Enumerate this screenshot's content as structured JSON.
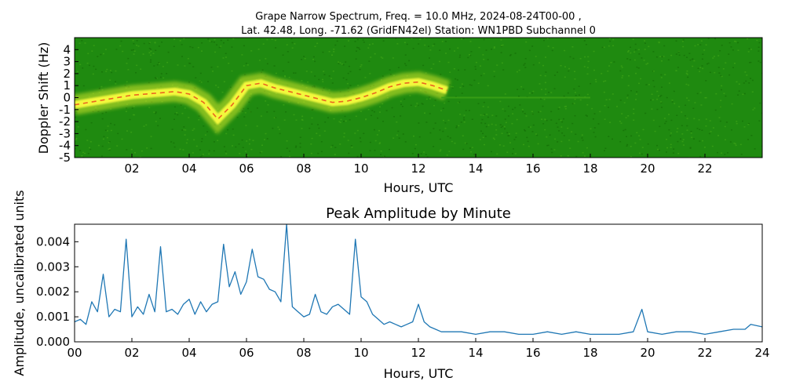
{
  "figure": {
    "title_line1": "Grape Narrow Spectrum, Freq. = 10.0 MHz, 2024-08-24T00-00 ,",
    "title_line2": "Lat.  42.48, Long. -71.62 (GridFN42el) Station: WN1PBD Subchannel 0"
  },
  "colors": {
    "spectrum_background": "#1f8a10",
    "spectrum_low": "#3aa016",
    "spectrum_mid": "#d8e82a",
    "spectrum_high": "#ffff40",
    "spectrum_peak": "#e8401a",
    "line": "#1f77b4"
  },
  "chart_data": [
    {
      "type": "heatmap",
      "title": "",
      "xlabel": "Hours, UTC",
      "ylabel": "Doppler Shift (Hz)",
      "xlim": [
        0,
        24
      ],
      "ylim": [
        -5,
        5
      ],
      "x_ticks": [
        "02",
        "04",
        "06",
        "08",
        "10",
        "12",
        "14",
        "16",
        "18",
        "20",
        "22"
      ],
      "y_ticks": [
        "4",
        "3",
        "2",
        "1",
        "0",
        "-1",
        "-2",
        "-3",
        "-4",
        "-5"
      ],
      "grid": false,
      "trace": {
        "x": [
          0.0,
          0.5,
          1.0,
          1.5,
          2.0,
          2.5,
          3.0,
          3.5,
          4.0,
          4.5,
          5.0,
          5.5,
          6.0,
          6.5,
          7.0,
          7.5,
          8.0,
          8.5,
          9.0,
          9.5,
          10.0,
          10.5,
          11.0,
          11.5,
          12.0,
          12.5,
          13.0
        ],
        "y": [
          -0.6,
          -0.4,
          -0.2,
          0.0,
          0.2,
          0.3,
          0.4,
          0.5,
          0.3,
          -0.4,
          -1.8,
          -0.6,
          1.0,
          1.2,
          0.8,
          0.5,
          0.2,
          -0.1,
          -0.4,
          -0.3,
          0.0,
          0.4,
          0.9,
          1.2,
          1.3,
          1.0,
          0.6
        ]
      },
      "quiet_line_y": 0.0
    },
    {
      "type": "line",
      "title": "Peak Amplitude by Minute",
      "xlabel": "Hours, UTC",
      "ylabel": "Amplitude, uncalibrated units",
      "xlim": [
        0,
        24
      ],
      "ylim": [
        0,
        0.0047
      ],
      "x_ticks": [
        "00",
        "02",
        "04",
        "06",
        "08",
        "10",
        "12",
        "14",
        "16",
        "18",
        "20",
        "22",
        "24"
      ],
      "y_ticks": [
        "0.000",
        "0.001",
        "0.002",
        "0.003",
        "0.004"
      ],
      "grid": false,
      "series": [
        {
          "x": [
            0.0,
            0.2,
            0.4,
            0.6,
            0.8,
            1.0,
            1.2,
            1.4,
            1.6,
            1.8,
            2.0,
            2.2,
            2.4,
            2.6,
            2.8,
            3.0,
            3.2,
            3.4,
            3.6,
            3.8,
            4.0,
            4.2,
            4.4,
            4.6,
            4.8,
            5.0,
            5.2,
            5.4,
            5.6,
            5.8,
            6.0,
            6.2,
            6.4,
            6.6,
            6.8,
            7.0,
            7.2,
            7.4,
            7.6,
            7.8,
            8.0,
            8.2,
            8.4,
            8.6,
            8.8,
            9.0,
            9.2,
            9.4,
            9.6,
            9.8,
            10.0,
            10.2,
            10.4,
            10.6,
            10.8,
            11.0,
            11.2,
            11.4,
            11.6,
            11.8,
            12.0,
            12.2,
            12.4,
            12.6,
            12.8,
            13.0,
            13.5,
            14.0,
            14.5,
            15.0,
            15.5,
            16.0,
            16.5,
            17.0,
            17.5,
            18.0,
            18.5,
            19.0,
            19.5,
            19.8,
            20.0,
            20.5,
            21.0,
            21.5,
            22.0,
            22.5,
            23.0,
            23.4,
            23.6,
            24.0
          ],
          "values": [
            0.0008,
            0.0009,
            0.0007,
            0.0016,
            0.0012,
            0.0027,
            0.001,
            0.0013,
            0.0012,
            0.0041,
            0.001,
            0.0014,
            0.0011,
            0.0019,
            0.0012,
            0.0038,
            0.0012,
            0.0013,
            0.0011,
            0.0015,
            0.0017,
            0.0011,
            0.0016,
            0.0012,
            0.0015,
            0.0016,
            0.0039,
            0.0022,
            0.0028,
            0.0019,
            0.0024,
            0.0037,
            0.0026,
            0.0025,
            0.0021,
            0.002,
            0.0016,
            0.0047,
            0.0014,
            0.0012,
            0.001,
            0.0011,
            0.0019,
            0.0012,
            0.0011,
            0.0014,
            0.0015,
            0.0013,
            0.0011,
            0.0041,
            0.0018,
            0.0016,
            0.0011,
            0.0009,
            0.0007,
            0.0008,
            0.0007,
            0.0006,
            0.0007,
            0.0008,
            0.0015,
            0.0008,
            0.0006,
            0.0005,
            0.0004,
            0.0004,
            0.0004,
            0.0003,
            0.0004,
            0.0004,
            0.0003,
            0.0003,
            0.0004,
            0.0003,
            0.0004,
            0.0003,
            0.0003,
            0.0003,
            0.0004,
            0.0013,
            0.0004,
            0.0003,
            0.0004,
            0.0004,
            0.0003,
            0.0004,
            0.0005,
            0.0005,
            0.0007,
            0.0006
          ]
        }
      ]
    }
  ]
}
